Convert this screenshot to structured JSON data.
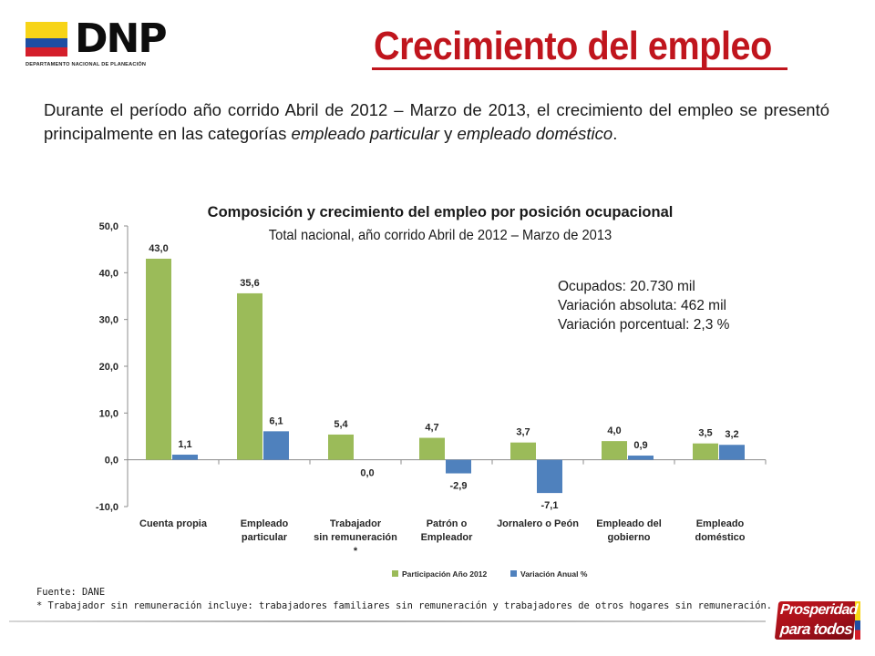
{
  "logo": {
    "text": "DNP",
    "subtitle": "DEPARTAMENTO NACIONAL DE PLANEACIÓN"
  },
  "title": "Crecimiento del empleo",
  "intro": {
    "part1": "Durante el período año corrido Abril de 2012 – Marzo de 2013, el crecimiento del empleo se presentó principalmente en las categorías ",
    "em1": "empleado particular",
    "part2": " y ",
    "em2": "empleado doméstico",
    "part3": "."
  },
  "stats": {
    "ocupados": "Ocupados: 20.730 mil",
    "variacion_absoluta": "Variación absoluta: 462 mil",
    "variacion_porcentual": "Variación porcentual: 2,3 %"
  },
  "colors": {
    "green": "#9bbb59",
    "blue": "#4f81bd",
    "red": "#c0151d"
  },
  "chart_data": {
    "type": "bar",
    "title": "Composición y crecimiento del empleo por posición ocupacional",
    "subtitle": "Total nacional, año corrido Abril de 2012 – Marzo de 2013",
    "categories": [
      [
        "Cuenta propia"
      ],
      [
        "Empleado",
        "particular"
      ],
      [
        "Trabajador",
        "sin remuneración",
        "*"
      ],
      [
        "Patrón o",
        "Empleador"
      ],
      [
        "Jornalero o Peón"
      ],
      [
        "Empleado del",
        "gobierno"
      ],
      [
        "Empleado",
        "doméstico"
      ]
    ],
    "series": [
      {
        "name": "Participación Año 2012",
        "color": "#9bbb59",
        "values": [
          43.0,
          35.6,
          5.4,
          4.7,
          3.7,
          4.0,
          3.5
        ],
        "labels": [
          "43,0",
          "35,6",
          "5,4",
          "4,7",
          "3,7",
          "4,0",
          "3,5"
        ]
      },
      {
        "name": "Variación Anual %",
        "color": "#4f81bd",
        "values": [
          1.1,
          6.1,
          0.0,
          -2.9,
          -7.1,
          0.9,
          3.2
        ],
        "labels": [
          "1,1",
          "6,1",
          "0,0",
          "-2,9",
          "-7,1",
          "0,9",
          "3,2"
        ]
      }
    ],
    "ylim": [
      -10,
      50
    ],
    "yticks": [
      -10,
      0,
      10,
      20,
      30,
      40,
      50
    ],
    "ytick_labels": [
      "-10,0",
      "0,0",
      "10,0",
      "20,0",
      "30,0",
      "40,0",
      "50,0"
    ],
    "legend_position": "bottom-right",
    "grid": false
  },
  "footnote": {
    "source": "Fuente: DANE",
    "note": "* Trabajador sin remuneración incluye: trabajadores familiares sin remuneración y trabajadores de otros hogares sin remuneración."
  },
  "badge": {
    "line1": "Prosperidad",
    "line2": "para todos"
  }
}
